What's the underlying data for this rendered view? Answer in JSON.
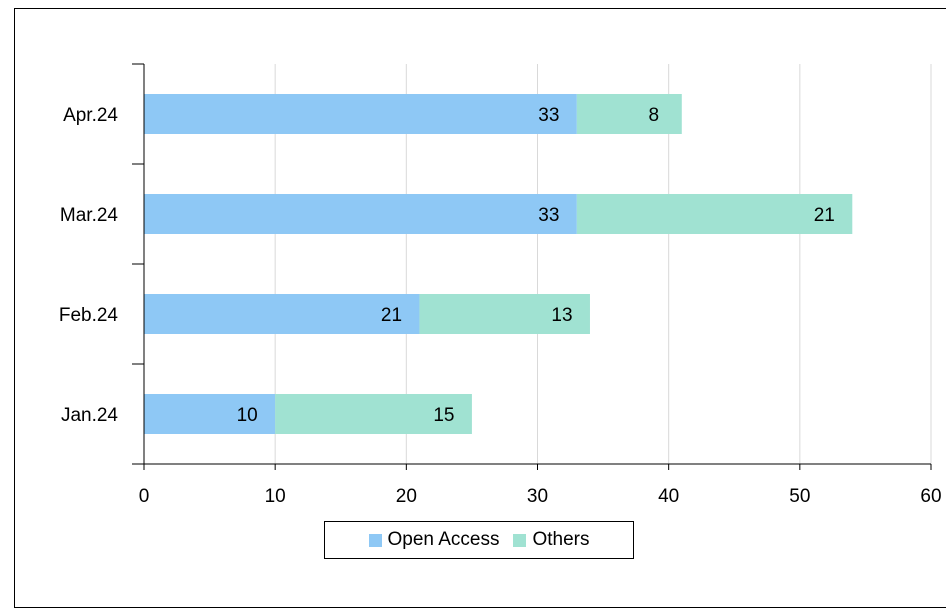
{
  "chart_data": {
    "type": "bar",
    "orientation": "horizontal",
    "stacked": true,
    "categories": [
      "Jan.24",
      "Feb.24",
      "Mar.24",
      "Apr.24"
    ],
    "series": [
      {
        "name": "Open Access",
        "values": [
          10,
          21,
          33,
          33
        ],
        "color": "#8ec8f5"
      },
      {
        "name": "Others",
        "values": [
          15,
          13,
          21,
          8
        ],
        "color": "#a0e2d2"
      }
    ],
    "xlim": [
      0,
      60
    ],
    "xticks": [
      "0",
      "10",
      "20",
      "30",
      "40",
      "50",
      "60"
    ],
    "grid": "vertical",
    "legend": "bottom",
    "title": "",
    "xlabel": "",
    "ylabel": ""
  }
}
